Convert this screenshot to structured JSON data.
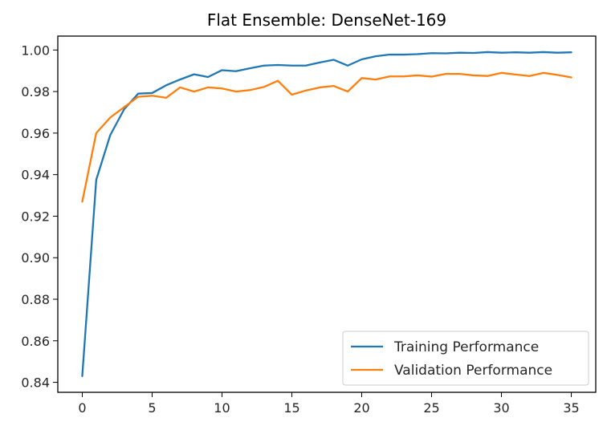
{
  "chart_data": {
    "type": "line",
    "title": "Flat Ensemble: DenseNet-169",
    "xlabel": "",
    "ylabel": "",
    "xlim": [
      -1.75,
      36.75
    ],
    "ylim": [
      0.8352,
      1.0067
    ],
    "xticks": [
      0,
      5,
      10,
      15,
      20,
      25,
      30,
      35
    ],
    "xtick_labels": [
      "0",
      "5",
      "10",
      "15",
      "20",
      "25",
      "30",
      "35"
    ],
    "yticks": [
      0.84,
      0.86,
      0.88,
      0.9,
      0.92,
      0.94,
      0.96,
      0.98,
      1.0
    ],
    "ytick_labels": [
      "0.84",
      "0.86",
      "0.88",
      "0.90",
      "0.92",
      "0.94",
      "0.96",
      "0.98",
      "1.00"
    ],
    "grid": false,
    "legend_position": "lower-right",
    "x": [
      0,
      1,
      2,
      3,
      4,
      5,
      6,
      7,
      8,
      9,
      10,
      11,
      12,
      13,
      14,
      15,
      16,
      17,
      18,
      19,
      20,
      21,
      22,
      23,
      24,
      25,
      26,
      27,
      28,
      29,
      30,
      31,
      32,
      33,
      34,
      35
    ],
    "series": [
      {
        "name": "Training Performance",
        "color": "#1f77b4",
        "values": [
          0.843,
          0.9375,
          0.959,
          0.9715,
          0.979,
          0.9793,
          0.983,
          0.9858,
          0.9883,
          0.987,
          0.9903,
          0.9898,
          0.9912,
          0.9925,
          0.9928,
          0.9925,
          0.9925,
          0.994,
          0.9953,
          0.9925,
          0.9955,
          0.997,
          0.9978,
          0.9978,
          0.998,
          0.9985,
          0.9984,
          0.9987,
          0.9986,
          0.999,
          0.9987,
          0.9989,
          0.9987,
          0.999,
          0.9987,
          0.9989
        ]
      },
      {
        "name": "Validation Performance",
        "color": "#ff7f0e",
        "values": [
          0.927,
          0.96,
          0.9675,
          0.9725,
          0.9775,
          0.978,
          0.977,
          0.982,
          0.98,
          0.982,
          0.9815,
          0.98,
          0.9807,
          0.9822,
          0.9852,
          0.9785,
          0.9805,
          0.982,
          0.9827,
          0.98,
          0.9865,
          0.9858,
          0.9873,
          0.9873,
          0.9878,
          0.9872,
          0.9885,
          0.9885,
          0.9878,
          0.9875,
          0.989,
          0.9882,
          0.9875,
          0.989,
          0.988,
          0.9868
        ]
      }
    ]
  }
}
